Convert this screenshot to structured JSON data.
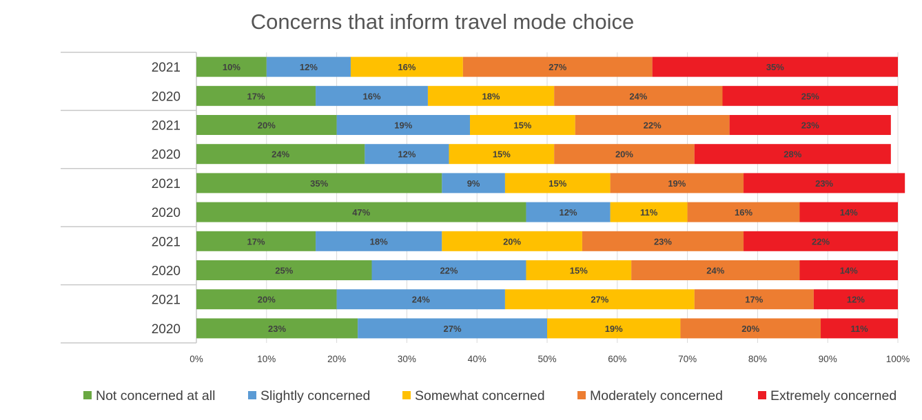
{
  "chart_data": {
    "type": "bar",
    "orientation": "horizontal",
    "stacked": "percent",
    "title": "Concerns that inform travel mode choice",
    "categories": [
      "2021",
      "2020",
      "2021",
      "2020",
      "2021",
      "2020",
      "2021",
      "2020",
      "2021",
      "2020"
    ],
    "series": [
      {
        "name": "Not concerned at all",
        "color": "#6aa842",
        "values": [
          10,
          17,
          20,
          24,
          35,
          47,
          17,
          25,
          20,
          23
        ]
      },
      {
        "name": "Slightly concerned",
        "color": "#5b9bd5",
        "values": [
          12,
          16,
          19,
          12,
          9,
          12,
          18,
          22,
          24,
          27
        ]
      },
      {
        "name": "Somewhat concerned",
        "color": "#ffc000",
        "values": [
          16,
          18,
          15,
          15,
          15,
          11,
          20,
          15,
          27,
          19
        ]
      },
      {
        "name": "Moderately concerned",
        "color": "#ed7d31",
        "values": [
          27,
          24,
          22,
          20,
          19,
          16,
          23,
          24,
          17,
          20
        ]
      },
      {
        "name": "Extremely concerned",
        "color": "#ed1c24",
        "values": [
          35,
          25,
          23,
          28,
          23,
          14,
          22,
          14,
          12,
          11
        ]
      }
    ],
    "xlim": [
      0,
      100
    ],
    "x_ticks": [
      "0%",
      "10%",
      "20%",
      "30%",
      "40%",
      "50%",
      "60%",
      "70%",
      "80%",
      "90%",
      "100%"
    ],
    "grid": true,
    "legend_position": "bottom"
  }
}
